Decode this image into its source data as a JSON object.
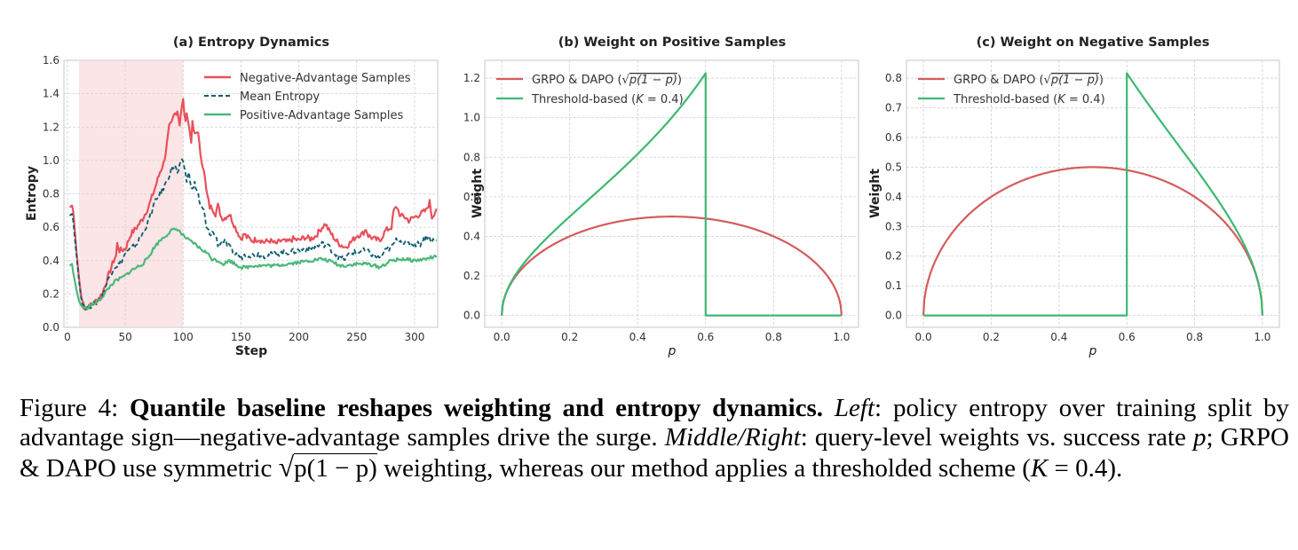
{
  "chart_data": [
    {
      "type": "line",
      "title": "(a) Entropy Dynamics",
      "xlabel": "Step",
      "ylabel": "Entropy",
      "xlim": [
        -3,
        320
      ],
      "ylim": [
        0.0,
        1.6
      ],
      "xticks": [
        0,
        50,
        100,
        150,
        200,
        250,
        300
      ],
      "yticks": [
        0.0,
        0.2,
        0.4,
        0.6,
        0.8,
        1.0,
        1.2,
        1.4,
        1.6
      ],
      "ytick_labels": [
        "0.0",
        "0.2",
        "0.4",
        "0.6",
        "0.8",
        "1.0",
        "1.2",
        "1.4",
        "1.6"
      ],
      "grid": true,
      "legend_position": "top-right",
      "shaded_region": {
        "x_start": 10,
        "x_end": 100,
        "color": "#fbe5e6"
      },
      "series": [
        {
          "name": "Negative-Advantage Samples",
          "color": "#e8505b",
          "style": "solid",
          "x": [
            2,
            4,
            5,
            8,
            10,
            12,
            15,
            20,
            25,
            30,
            35,
            40,
            42,
            43,
            45,
            50,
            55,
            60,
            65,
            70,
            75,
            80,
            83,
            85,
            88,
            90,
            92,
            95,
            97,
            98,
            100,
            102,
            103,
            105,
            107,
            108,
            110,
            113,
            115,
            118,
            120,
            123,
            125,
            128,
            130,
            133,
            135,
            140,
            145,
            150,
            153,
            155,
            160,
            165,
            170,
            175,
            180,
            185,
            190,
            195,
            200,
            205,
            210,
            215,
            220,
            223,
            226,
            228,
            232,
            235,
            240,
            245,
            250,
            255,
            258,
            260,
            265,
            270,
            275,
            280,
            282,
            285,
            288,
            290,
            295,
            300,
            305,
            310,
            313,
            315,
            319
          ],
          "y": [
            0.72,
            0.73,
            0.7,
            0.45,
            0.3,
            0.18,
            0.12,
            0.13,
            0.16,
            0.2,
            0.3,
            0.4,
            0.43,
            0.5,
            0.46,
            0.47,
            0.56,
            0.6,
            0.65,
            0.72,
            0.82,
            0.93,
            0.98,
            1.05,
            1.2,
            1.22,
            1.27,
            1.3,
            1.22,
            1.28,
            1.36,
            1.22,
            1.3,
            1.2,
            1.12,
            1.22,
            1.15,
            1.18,
            1.02,
            0.95,
            0.82,
            0.72,
            0.72,
            0.68,
            0.73,
            0.66,
            0.65,
            0.68,
            0.6,
            0.53,
            0.56,
            0.54,
            0.52,
            0.53,
            0.51,
            0.52,
            0.5,
            0.52,
            0.51,
            0.53,
            0.52,
            0.54,
            0.53,
            0.55,
            0.6,
            0.62,
            0.58,
            0.56,
            0.52,
            0.5,
            0.48,
            0.51,
            0.55,
            0.56,
            0.59,
            0.55,
            0.53,
            0.52,
            0.58,
            0.6,
            0.7,
            0.72,
            0.66,
            0.67,
            0.64,
            0.66,
            0.68,
            0.7,
            0.75,
            0.66,
            0.71
          ]
        },
        {
          "name": "Mean Entropy",
          "color": "#0c5b6e",
          "style": "dashed",
          "x": [
            2,
            4,
            5,
            8,
            10,
            12,
            15,
            20,
            25,
            30,
            35,
            40,
            45,
            50,
            55,
            60,
            65,
            70,
            75,
            80,
            85,
            90,
            93,
            95,
            98,
            100,
            103,
            105,
            108,
            110,
            113,
            115,
            118,
            120,
            123,
            125,
            128,
            130,
            135,
            140,
            145,
            150,
            155,
            160,
            165,
            170,
            180,
            190,
            200,
            205,
            210,
            215,
            220,
            225,
            230,
            235,
            240,
            245,
            250,
            255,
            260,
            265,
            270,
            275,
            280,
            285,
            290,
            295,
            300,
            305,
            310,
            315,
            319
          ],
          "y": [
            0.67,
            0.68,
            0.64,
            0.42,
            0.28,
            0.17,
            0.12,
            0.13,
            0.15,
            0.19,
            0.28,
            0.36,
            0.38,
            0.44,
            0.47,
            0.5,
            0.56,
            0.64,
            0.74,
            0.8,
            0.86,
            0.95,
            0.97,
            0.92,
            0.98,
            1.0,
            0.88,
            0.92,
            0.82,
            0.86,
            0.8,
            0.72,
            0.7,
            0.6,
            0.56,
            0.57,
            0.55,
            0.5,
            0.52,
            0.48,
            0.44,
            0.42,
            0.44,
            0.43,
            0.44,
            0.43,
            0.44,
            0.45,
            0.46,
            0.47,
            0.47,
            0.48,
            0.5,
            0.49,
            0.45,
            0.42,
            0.41,
            0.45,
            0.45,
            0.46,
            0.45,
            0.43,
            0.42,
            0.46,
            0.48,
            0.53,
            0.51,
            0.5,
            0.5,
            0.5,
            0.55,
            0.52,
            0.52
          ]
        },
        {
          "name": "Positive-Advantage Samples",
          "color": "#4cb87a",
          "style": "solid",
          "x": [
            2,
            4,
            5,
            8,
            10,
            12,
            15,
            20,
            25,
            30,
            35,
            40,
            45,
            50,
            55,
            60,
            65,
            70,
            75,
            80,
            85,
            90,
            95,
            100,
            105,
            110,
            115,
            120,
            125,
            130,
            135,
            140,
            145,
            150,
            155,
            160,
            170,
            180,
            190,
            200,
            210,
            220,
            230,
            235,
            240,
            250,
            260,
            265,
            270,
            275,
            280,
            290,
            300,
            310,
            315,
            319
          ],
          "y": [
            0.37,
            0.38,
            0.33,
            0.22,
            0.16,
            0.13,
            0.11,
            0.13,
            0.15,
            0.18,
            0.23,
            0.27,
            0.29,
            0.31,
            0.34,
            0.36,
            0.38,
            0.42,
            0.48,
            0.52,
            0.55,
            0.58,
            0.59,
            0.55,
            0.52,
            0.5,
            0.47,
            0.45,
            0.41,
            0.4,
            0.38,
            0.4,
            0.38,
            0.36,
            0.36,
            0.37,
            0.37,
            0.37,
            0.38,
            0.39,
            0.4,
            0.41,
            0.39,
            0.37,
            0.37,
            0.38,
            0.38,
            0.37,
            0.36,
            0.38,
            0.4,
            0.41,
            0.4,
            0.41,
            0.42,
            0.42
          ]
        }
      ]
    },
    {
      "type": "line",
      "title": "(b) Weight on Positive Samples",
      "xlabel": "p",
      "ylabel": "Weight",
      "xlim": [
        -0.05,
        1.05
      ],
      "ylim": [
        -0.06,
        1.29
      ],
      "xticks": [
        0.0,
        0.2,
        0.4,
        0.6,
        0.8,
        1.0
      ],
      "xtick_labels": [
        "0.0",
        "0.2",
        "0.4",
        "0.6",
        "0.8",
        "1.0"
      ],
      "yticks": [
        0.0,
        0.2,
        0.4,
        0.6,
        0.8,
        1.0,
        1.2
      ],
      "ytick_labels": [
        "0.0",
        "0.2",
        "0.4",
        "0.6",
        "0.8",
        "1.0",
        "1.2"
      ],
      "grid": true,
      "legend_position": "top-left",
      "series": [
        {
          "name": "GRPO & DAPO (√p(1−p))",
          "color": "#d45c5c",
          "formula": "sqrt(p*(1-p))",
          "x": [
            0,
            0.01,
            0.05,
            0.1,
            0.2,
            0.3,
            0.4,
            0.5,
            0.6,
            0.7,
            0.8,
            0.9,
            0.95,
            0.99,
            1.0
          ],
          "y": [
            0,
            0.099,
            0.218,
            0.3,
            0.4,
            0.458,
            0.49,
            0.5,
            0.49,
            0.458,
            0.4,
            0.3,
            0.218,
            0.099,
            0
          ]
        },
        {
          "name": "Threshold-based (K = 0.4)",
          "color": "#3db872",
          "formula": "p<=0.6 ? sqrt(p/(1-p)) : 0",
          "x": [
            0,
            0.01,
            0.05,
            0.1,
            0.2,
            0.3,
            0.4,
            0.5,
            0.6,
            0.6,
            0.8,
            1.0
          ],
          "y": [
            0,
            0.1,
            0.229,
            0.333,
            0.5,
            0.655,
            0.816,
            1.0,
            1.225,
            0,
            0,
            0
          ]
        }
      ]
    },
    {
      "type": "line",
      "title": "(c) Weight on Negative Samples",
      "xlabel": "p",
      "ylabel": "Weight",
      "xlim": [
        -0.05,
        1.05
      ],
      "ylim": [
        -0.04,
        0.86
      ],
      "xticks": [
        0.0,
        0.2,
        0.4,
        0.6,
        0.8,
        1.0
      ],
      "xtick_labels": [
        "0.0",
        "0.2",
        "0.4",
        "0.6",
        "0.8",
        "1.0"
      ],
      "yticks": [
        0.0,
        0.1,
        0.2,
        0.3,
        0.4,
        0.5,
        0.6,
        0.7,
        0.8
      ],
      "ytick_labels": [
        "0.0",
        "0.1",
        "0.2",
        "0.3",
        "0.4",
        "0.5",
        "0.6",
        "0.7",
        "0.8"
      ],
      "grid": true,
      "legend_position": "top-left",
      "series": [
        {
          "name": "GRPO & DAPO (√p(1−p))",
          "color": "#d45c5c",
          "formula": "sqrt(p*(1-p))",
          "x": [
            0,
            0.01,
            0.05,
            0.1,
            0.2,
            0.3,
            0.4,
            0.5,
            0.6,
            0.7,
            0.8,
            0.9,
            0.95,
            0.99,
            1.0
          ],
          "y": [
            0,
            0.099,
            0.218,
            0.3,
            0.4,
            0.458,
            0.49,
            0.5,
            0.49,
            0.458,
            0.4,
            0.3,
            0.218,
            0.099,
            0
          ]
        },
        {
          "name": "Threshold-based (K = 0.4)",
          "color": "#3db872",
          "formula": "p>=0.6 ? sqrt((1-p)/p) : 0",
          "x": [
            0,
            0.4,
            0.6,
            0.6,
            0.7,
            0.8,
            0.9,
            0.95,
            0.99,
            1.0
          ],
          "y": [
            0,
            0,
            0,
            0.816,
            0.655,
            0.5,
            0.333,
            0.229,
            0.1,
            0
          ]
        }
      ]
    }
  ],
  "legend_a": [
    "Negative-Advantage Samples",
    "Mean Entropy",
    "Positive-Advantage Samples"
  ],
  "legend_bc": {
    "grpo_prefix": "GRPO & DAPO (",
    "grpo_radicand": "p(1 − p)",
    "grpo_suffix": ")",
    "threshold": "Threshold-based (",
    "threshold_k": "K",
    "threshold_val": " = 0.4)"
  },
  "caption": {
    "label": "Figure 4: ",
    "bold": "Quantile baseline reshapes weighting and entropy dynamics.",
    "left_label": "Left",
    "left_text": ": policy entropy over training split by advantage sign—negative-advantage samples drive the surge. ",
    "mr_label": "Middle/Right",
    "mr_text1": ": query-level weights vs. success rate ",
    "p": "p",
    "mr_text2": "; GRPO & DAPO use symmetric ",
    "radicand": "p(1 − p)",
    "mr_text3": " weighting, whereas our method applies a thresholded scheme (",
    "k": "K",
    "k_val": " = 0.4)."
  }
}
